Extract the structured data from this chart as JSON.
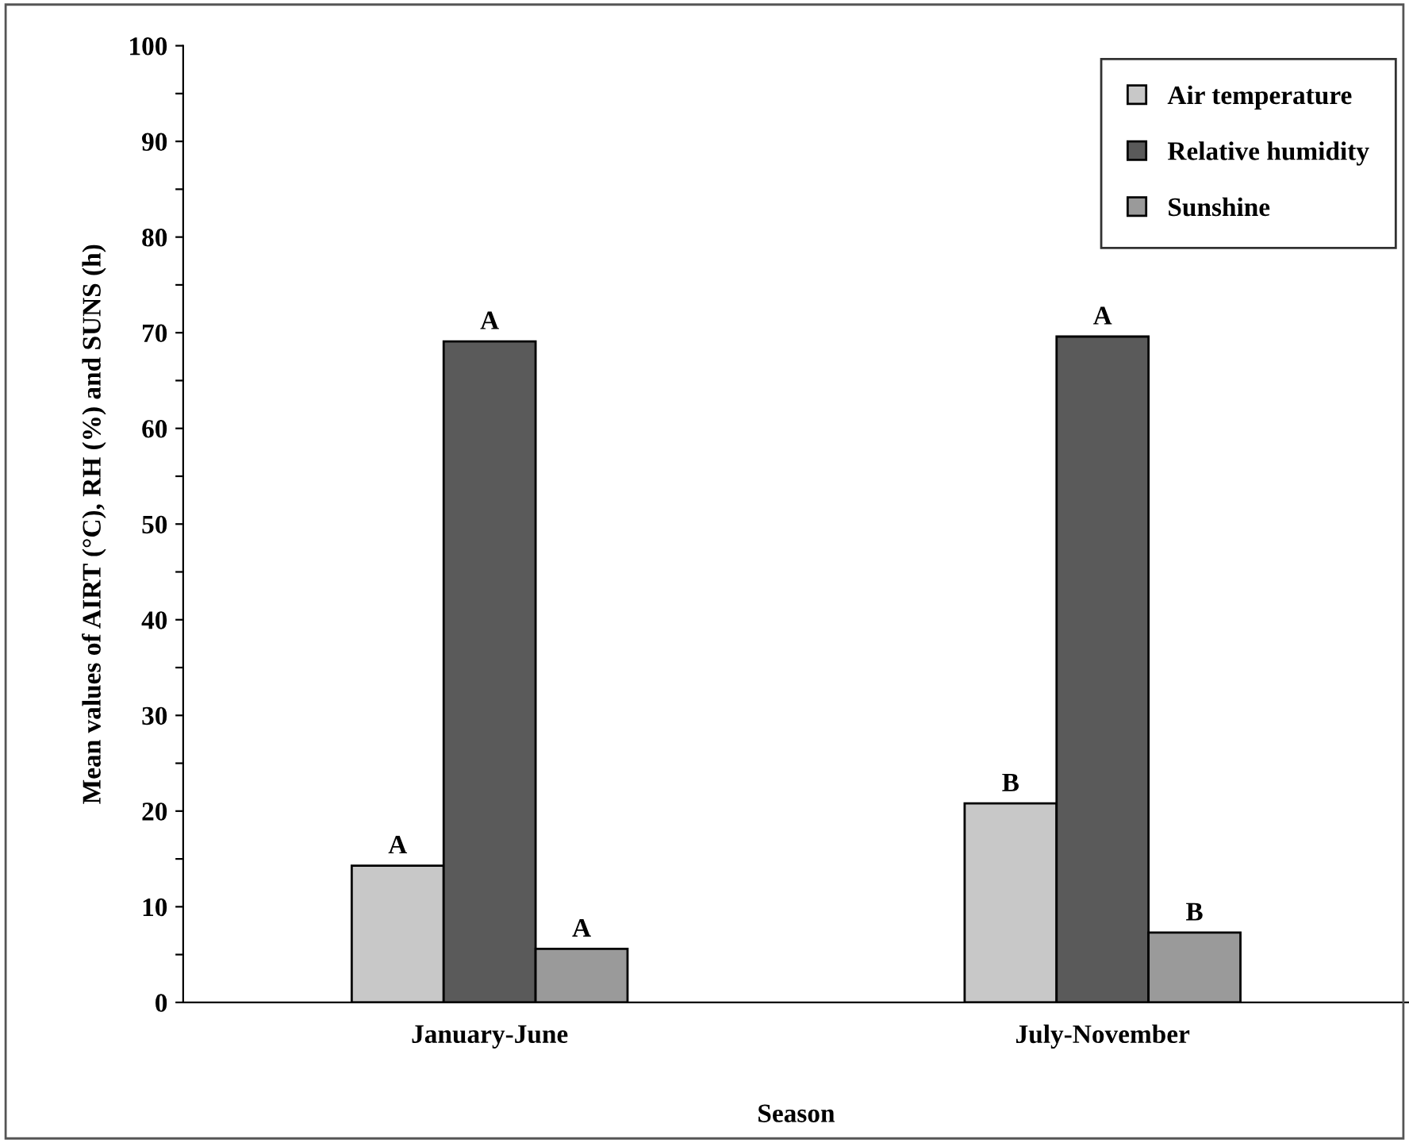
{
  "chart_data": {
    "type": "bar",
    "xlabel": "Season",
    "ylabel": "Mean values of AIRT (°C), RH (%) and SUNS (h)",
    "categories": [
      "January-June",
      "July-November"
    ],
    "series": [
      {
        "name": "Air temperature",
        "color": "#c8c8c8",
        "values": [
          14.3,
          20.8
        ],
        "value_labels": [
          "A",
          "B"
        ]
      },
      {
        "name": "Relative humidity",
        "color": "#5a5a5a",
        "values": [
          69.1,
          69.6
        ],
        "value_labels": [
          "A",
          "A"
        ]
      },
      {
        "name": "Sunshine",
        "color": "#9a9a9a",
        "values": [
          5.6,
          7.3
        ],
        "value_labels": [
          "A",
          "B"
        ]
      }
    ],
    "ylim": [
      0,
      100
    ],
    "yticks": [
      0,
      {
        "value": 5,
        "label": null
      },
      10,
      {
        "value": 15,
        "label": null
      },
      20,
      {
        "value": 25,
        "label": null
      },
      30,
      {
        "value": 35,
        "label": null
      },
      40,
      {
        "value": 45,
        "label": null
      },
      50,
      {
        "value": 55,
        "label": null
      },
      60,
      {
        "value": 65,
        "label": null
      },
      70,
      {
        "value": 75,
        "label": null
      },
      80,
      {
        "value": 85,
        "label": null
      },
      90,
      {
        "value": 95,
        "label": null
      },
      100
    ],
    "grid": false,
    "legend": "top right"
  }
}
